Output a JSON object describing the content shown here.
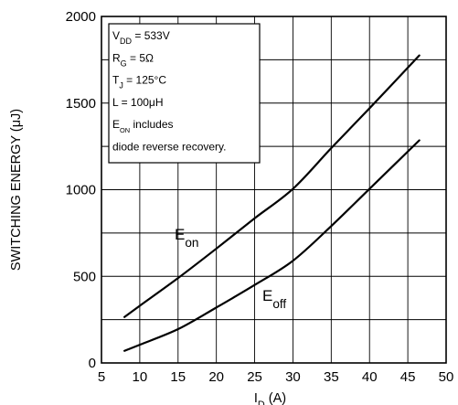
{
  "chart_data": {
    "type": "line",
    "xlabel": {
      "main": "I",
      "sub": "D",
      "unit": " (A)"
    },
    "ylabel": "SWITCHING ENERGY (μJ)",
    "xlim": [
      5,
      50
    ],
    "ylim": [
      0,
      2000
    ],
    "x_ticks": [
      "5",
      "10",
      "15",
      "20",
      "25",
      "30",
      "35",
      "40",
      "45",
      "50"
    ],
    "y_ticks": [
      "0",
      "500",
      "1000",
      "1500",
      "2000"
    ],
    "grid": "on",
    "series": [
      {
        "key": "Eon",
        "x": [
          8,
          10,
          15,
          20,
          25,
          30,
          35,
          40,
          46.5
        ],
        "y": [
          265,
          330,
          490,
          660,
          835,
          1005,
          1240,
          1470,
          1775
        ]
      },
      {
        "key": "Eoff",
        "x": [
          8,
          10,
          15,
          20,
          25,
          30,
          35,
          40,
          46.5
        ],
        "y": [
          70,
          105,
          195,
          320,
          450,
          590,
          790,
          1005,
          1285
        ]
      }
    ],
    "series_labels": {
      "Eon": {
        "main": "E",
        "sub": "on"
      },
      "Eoff": {
        "main": "E",
        "sub": "off"
      }
    },
    "conditions_box": [
      {
        "main": "V",
        "sub": "DD",
        "rest": " = 533V"
      },
      {
        "main": "R",
        "sub": "G",
        "rest": " = 5Ω"
      },
      {
        "main": "T",
        "sub": "J",
        "rest": " = 125°C"
      },
      {
        "main": "L = 100μH",
        "sub": "",
        "rest": ""
      },
      {
        "main": "E",
        "sub": "ON",
        "rest": "  includes"
      },
      {
        "main": "diode  reverse  recovery.",
        "sub": "",
        "rest": ""
      }
    ]
  }
}
